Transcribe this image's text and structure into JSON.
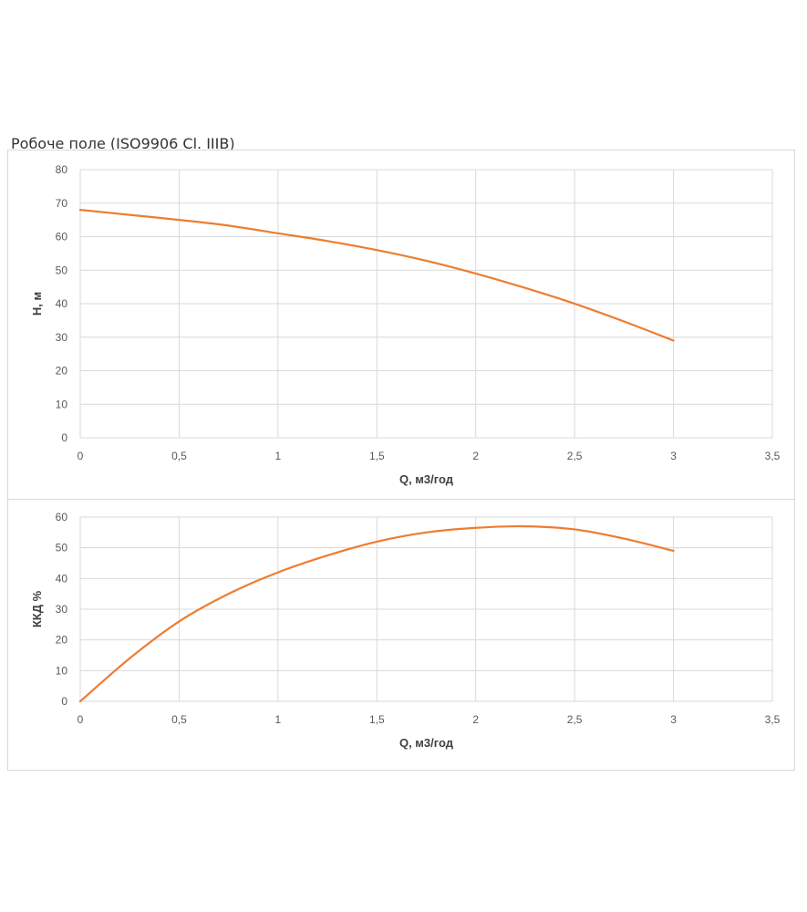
{
  "page": {
    "title": "Робоче поле (ISO9906 Cl. IIIB)"
  },
  "colors": {
    "series": "#ED7D31",
    "grid": "#D9D9D9",
    "axis_text": "#595959"
  },
  "chart_data": [
    {
      "type": "line",
      "title": "",
      "xlabel": "Q, м3/год",
      "ylabel": "H, м",
      "xlim": [
        0,
        3.5
      ],
      "ylim": [
        0,
        80
      ],
      "x_ticks": [
        "0",
        "0,5",
        "1",
        "1,5",
        "2",
        "2,5",
        "3",
        "3,5"
      ],
      "y_ticks": [
        "0",
        "10",
        "20",
        "30",
        "40",
        "50",
        "60",
        "70",
        "80"
      ],
      "grid": true,
      "legend": "none",
      "series": [
        {
          "x": [
            0,
            0.25,
            0.5,
            0.75,
            1,
            1.25,
            1.5,
            1.75,
            2,
            2.25,
            2.5,
            2.75,
            3
          ],
          "y": [
            68,
            66.5,
            65,
            63.3,
            61,
            58.7,
            56,
            52.8,
            49,
            44.7,
            40,
            34.7,
            29
          ]
        }
      ]
    },
    {
      "type": "line",
      "title": "",
      "xlabel": "Q, м3/год",
      "ylabel": "ККД %",
      "xlim": [
        0,
        3.5
      ],
      "ylim": [
        0,
        60
      ],
      "x_ticks": [
        "0",
        "0,5",
        "1",
        "1,5",
        "2",
        "2,5",
        "3",
        "3,5"
      ],
      "y_ticks": [
        "0",
        "10",
        "20",
        "30",
        "40",
        "50",
        "60"
      ],
      "grid": true,
      "legend": "none",
      "series": [
        {
          "x": [
            0,
            0.25,
            0.5,
            0.75,
            1,
            1.25,
            1.5,
            1.75,
            2,
            2.25,
            2.5,
            2.75,
            3
          ],
          "y": [
            0,
            14,
            26,
            35,
            42,
            47.5,
            52,
            55,
            56.5,
            57,
            56,
            53,
            49
          ]
        }
      ]
    }
  ]
}
